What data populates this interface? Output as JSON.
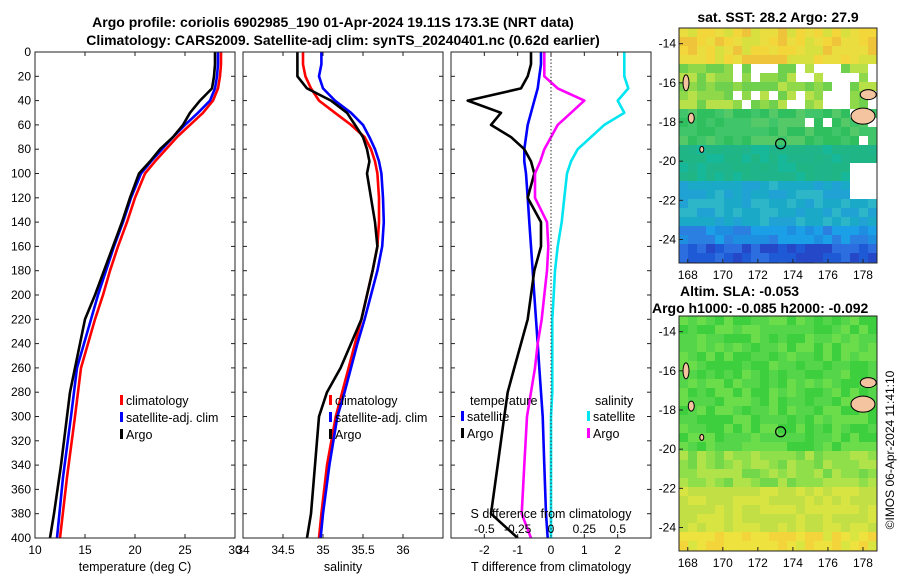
{
  "title": {
    "line1": "Argo profile: coriolis 6902985_190 01-Apr-2024 19.11S 173.3E (NRT data)",
    "line2": "Climatology: CARS2009. Satellite-adj clim: synTS_20240401.nc (0.62d earlier)"
  },
  "colors": {
    "climatology": "#ff0000",
    "satellite": "#0000ff",
    "argo": "#000000",
    "sat_salinity": "#00e5f0",
    "argo_salinity": "#ff00ff"
  },
  "timestamp": "©IMOS 06-Apr-2024 11:41:10",
  "chart_data": [
    {
      "id": "temperature",
      "type": "line",
      "xlabel": "temperature (deg C)",
      "ylabel": "",
      "xlim": [
        10,
        30
      ],
      "ylim": [
        0,
        400
      ],
      "y_reversed": true,
      "xticks": [
        10,
        15,
        20,
        25,
        30
      ],
      "yticks": [
        0,
        20,
        40,
        60,
        80,
        100,
        120,
        140,
        160,
        180,
        200,
        220,
        240,
        260,
        280,
        300,
        320,
        340,
        360,
        380,
        400
      ],
      "legend": [
        "climatology",
        "satellite-adj. clim",
        "Argo"
      ],
      "series": [
        {
          "name": "climatology",
          "color": "#ff0000",
          "x": [
            28.6,
            28.6,
            28.5,
            28.3,
            27.8,
            26.8,
            25.5,
            24.2,
            23.1,
            22.0,
            21.0,
            20.0,
            19.2,
            18.3,
            17.5,
            16.8,
            16.0,
            15.3,
            14.6,
            14.0,
            13.2,
            12.5
          ],
          "y": [
            0,
            10,
            20,
            30,
            40,
            50,
            60,
            70,
            80,
            90,
            100,
            120,
            140,
            160,
            180,
            200,
            220,
            240,
            260,
            300,
            350,
            400
          ]
        },
        {
          "name": "satellite-adj. clim",
          "color": "#0000ff",
          "x": [
            28.3,
            28.3,
            28.2,
            28.0,
            27.5,
            26.3,
            25.0,
            23.8,
            22.7,
            21.6,
            20.6,
            19.6,
            18.8,
            17.9,
            17.1,
            16.3,
            15.6,
            14.9,
            14.2,
            13.6,
            12.8,
            12.2
          ],
          "y": [
            0,
            10,
            20,
            30,
            40,
            50,
            60,
            70,
            80,
            90,
            100,
            120,
            140,
            160,
            180,
            200,
            220,
            240,
            260,
            300,
            350,
            400
          ]
        },
        {
          "name": "Argo",
          "color": "#000000",
          "x": [
            28.0,
            28.0,
            27.9,
            27.7,
            26.5,
            25.5,
            24.8,
            23.8,
            22.5,
            21.5,
            20.4,
            19.5,
            18.7,
            17.8,
            16.9,
            16.0,
            15.0,
            14.5,
            14.0,
            13.5,
            13.2,
            12.6,
            11.9,
            11.5
          ],
          "y": [
            0,
            10,
            20,
            30,
            40,
            50,
            60,
            70,
            80,
            90,
            100,
            120,
            140,
            160,
            180,
            200,
            220,
            240,
            260,
            280,
            300,
            340,
            380,
            400
          ]
        }
      ]
    },
    {
      "id": "salinity",
      "type": "line",
      "xlabel": "salinity",
      "ylabel": "",
      "xlim": [
        34,
        36.5
      ],
      "ylim": [
        0,
        400
      ],
      "y_reversed": true,
      "xticks": [
        34,
        34.5,
        35,
        35.5,
        36
      ],
      "legend": [
        "climatology",
        "satellite-adj. clim",
        "Argo"
      ],
      "series": [
        {
          "name": "climatology",
          "color": "#ff0000",
          "x": [
            34.75,
            34.75,
            34.78,
            34.85,
            34.95,
            35.15,
            35.35,
            35.52,
            35.6,
            35.65,
            35.68,
            35.7,
            35.7,
            35.68,
            35.62,
            35.55,
            35.48,
            35.4,
            35.32,
            35.24,
            35.16,
            35.05,
            34.98,
            34.95
          ],
          "y": [
            0,
            10,
            20,
            30,
            40,
            50,
            60,
            70,
            80,
            90,
            100,
            120,
            140,
            160,
            180,
            200,
            220,
            240,
            260,
            280,
            300,
            340,
            380,
            400
          ]
        },
        {
          "name": "satellite-adj. clim",
          "color": "#0000ff",
          "x": [
            34.98,
            34.98,
            34.95,
            35.0,
            35.15,
            35.35,
            35.5,
            35.58,
            35.65,
            35.7,
            35.73,
            35.75,
            35.76,
            35.74,
            35.68,
            35.6,
            35.52,
            35.43,
            35.35,
            35.27,
            35.18,
            35.08,
            35.0,
            34.97
          ],
          "y": [
            0,
            10,
            20,
            30,
            40,
            50,
            60,
            70,
            80,
            90,
            100,
            120,
            140,
            160,
            180,
            200,
            220,
            240,
            260,
            280,
            300,
            340,
            380,
            400
          ]
        },
        {
          "name": "Argo",
          "color": "#000000",
          "x": [
            34.68,
            34.68,
            34.68,
            34.8,
            35.1,
            35.3,
            35.4,
            35.5,
            35.55,
            35.58,
            35.55,
            35.6,
            35.65,
            35.68,
            35.62,
            35.55,
            35.48,
            35.35,
            35.22,
            35.05,
            34.95,
            34.9,
            34.85,
            34.8
          ],
          "y": [
            0,
            10,
            20,
            30,
            40,
            50,
            60,
            70,
            80,
            90,
            100,
            120,
            140,
            160,
            180,
            200,
            220,
            240,
            260,
            280,
            300,
            340,
            380,
            400
          ]
        }
      ]
    },
    {
      "id": "difference",
      "type": "line",
      "xlabel": "T difference from climatology",
      "xlabel2": "S difference from climatology",
      "xlim": [
        -3,
        3
      ],
      "xlim_S": [
        -0.75,
        0.75
      ],
      "ylim": [
        0,
        400
      ],
      "y_reversed": true,
      "xticks": [
        -2,
        -1,
        0,
        1,
        2
      ],
      "xticks_S": [
        "-0.5",
        "-0.25",
        "0",
        "0.25",
        "0.5"
      ],
      "legend_temperature": {
        "title": "temperature",
        "items": [
          "satellite",
          "Argo"
        ]
      },
      "legend_salinity": {
        "title": "salinity",
        "items": [
          "satellite",
          "Argo"
        ]
      },
      "series": [
        {
          "name": "temperature satellite",
          "color": "#0000ff",
          "units": "T",
          "x": [
            -0.3,
            -0.3,
            -0.35,
            -0.4,
            -0.5,
            -0.6,
            -0.7,
            -0.75,
            -0.8,
            -0.8,
            -0.75,
            -0.7,
            -0.65,
            -0.6,
            -0.55,
            -0.5,
            -0.45,
            -0.4,
            -0.35,
            -0.3,
            -0.25,
            -0.2,
            -0.15,
            -0.1
          ],
          "y": [
            0,
            10,
            20,
            30,
            40,
            50,
            60,
            70,
            80,
            90,
            100,
            120,
            140,
            160,
            180,
            200,
            220,
            240,
            260,
            280,
            300,
            340,
            380,
            400
          ]
        },
        {
          "name": "temperature Argo",
          "color": "#000000",
          "units": "T",
          "x": [
            -0.6,
            -0.6,
            -0.7,
            -0.9,
            -2.5,
            -1.5,
            -1.8,
            -1.2,
            -0.8,
            -0.6,
            -0.5,
            -0.7,
            -0.3,
            -0.3,
            -0.5,
            -0.6,
            -0.7,
            -0.9,
            -1.1,
            -1.3,
            -1.4,
            -1.6,
            -1.8,
            -1.0
          ],
          "y": [
            0,
            10,
            20,
            30,
            40,
            50,
            60,
            70,
            80,
            90,
            100,
            120,
            140,
            160,
            180,
            200,
            220,
            240,
            260,
            280,
            300,
            340,
            380,
            400
          ]
        },
        {
          "name": "salinity satellite",
          "color": "#00e5f0",
          "units": "S",
          "x": [
            0.55,
            0.55,
            0.55,
            0.58,
            0.5,
            0.55,
            0.4,
            0.3,
            0.2,
            0.15,
            0.12,
            0.1,
            0.08,
            0.05,
            0.03,
            0.02,
            0.01,
            0.01,
            0.01,
            0.01,
            0.0,
            0.0,
            0.0,
            0.0
          ],
          "y": [
            0,
            10,
            20,
            30,
            40,
            50,
            60,
            70,
            80,
            90,
            100,
            120,
            140,
            160,
            180,
            200,
            220,
            240,
            260,
            280,
            300,
            340,
            380,
            400
          ]
        },
        {
          "name": "salinity Argo",
          "color": "#ff00ff",
          "units": "S",
          "x": [
            -0.05,
            -0.05,
            -0.05,
            0.05,
            0.25,
            0.15,
            0.05,
            0.0,
            -0.05,
            -0.08,
            -0.12,
            -0.12,
            -0.03,
            -0.02,
            -0.03,
            -0.05,
            -0.07,
            -0.1,
            -0.12,
            -0.15,
            -0.18,
            -0.2,
            -0.22,
            -0.15
          ],
          "y": [
            0,
            10,
            20,
            30,
            40,
            50,
            60,
            70,
            80,
            90,
            100,
            120,
            140,
            160,
            180,
            200,
            220,
            240,
            260,
            280,
            300,
            340,
            380,
            400
          ]
        }
      ]
    },
    {
      "id": "sst_map",
      "type": "heatmap",
      "title": "sat. SST: 28.2 Argo: 27.9",
      "xlim": [
        167.5,
        178.8
      ],
      "ylim": [
        -25.2,
        -13.2
      ],
      "xticks": [
        168,
        170,
        172,
        174,
        176,
        178
      ],
      "yticks": [
        -14,
        -16,
        -18,
        -20,
        -22,
        -24
      ],
      "argo_position": [
        173.3,
        -19.11
      ]
    },
    {
      "id": "sla_map",
      "type": "heatmap",
      "title1": "Altim. SLA: -0.053",
      "title2": "Argo h1000: -0.085 h2000: -0.092",
      "xlim": [
        167.5,
        178.8
      ],
      "ylim": [
        -25.2,
        -13.2
      ],
      "xticks": [
        168,
        170,
        172,
        174,
        176,
        178
      ],
      "yticks": [
        -14,
        -16,
        -18,
        -20,
        -22,
        -24
      ],
      "argo_position": [
        173.3,
        -19.11
      ]
    }
  ]
}
